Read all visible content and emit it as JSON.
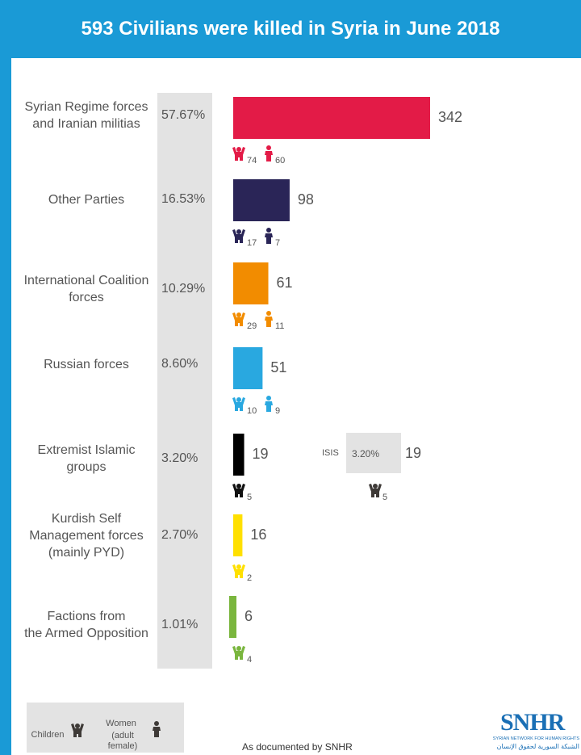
{
  "header": {
    "title": "593 Civilians were killed in Syria in June 2018",
    "background": "#1a9ad6"
  },
  "chart_data": {
    "type": "bar",
    "orientation": "horizontal",
    "title": "593 Civilians were killed in Syria in June 2018",
    "categories": [
      "Syrian Regime forces\nand Iranian militias",
      "Other Parties",
      "International Coalition\nforces",
      "Russian forces",
      "Extremist Islamic\ngroups",
      "Kurdish Self\nManagement forces\n(mainly PYD)",
      "Factions from\nthe Armed Opposition"
    ],
    "percentages": [
      "57.67%",
      "16.53%",
      "10.29%",
      "8.60%",
      "3.20%",
      "2.70%",
      "1.01%"
    ],
    "values": [
      342,
      98,
      61,
      51,
      19,
      16,
      6
    ],
    "colors": [
      "#e31b47",
      "#2a2557",
      "#f28c00",
      "#29a8e0",
      "#000000",
      "#ffe000",
      "#7ab63e"
    ],
    "children": [
      74,
      17,
      29,
      10,
      5,
      2,
      4
    ],
    "women": [
      60,
      7,
      11,
      9,
      null,
      null,
      null
    ],
    "sub_bar": {
      "label": "ISIS",
      "percentage": "3.20%",
      "value": 19,
      "children": 5,
      "color": "#3e3a37"
    }
  },
  "legend": {
    "children_label": "Children",
    "women_label": "Women",
    "women_sublabel": "(adult female)",
    "icon_color": "#3e3a37"
  },
  "footer": {
    "source": "As documented by SNHR"
  },
  "logo": {
    "main": "SNHR",
    "subtitle": "SYRIAN NETWORK FOR HUMAN RIGHTS",
    "arabic": "الشبكة السورية لحقوق الإنسان",
    "color": "#1a6fb5"
  }
}
